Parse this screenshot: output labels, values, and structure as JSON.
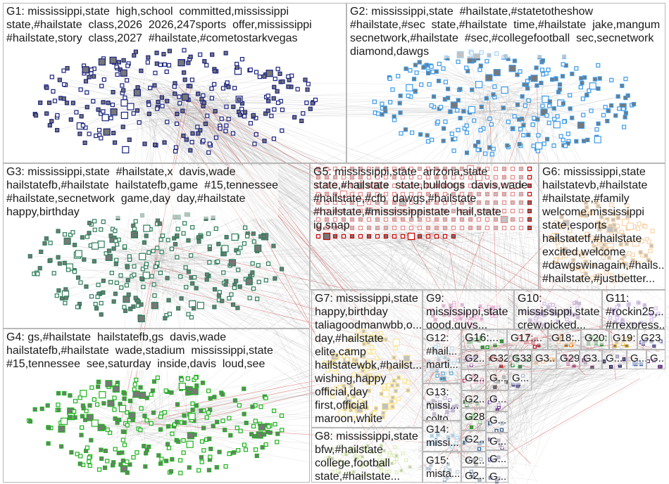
{
  "groups": [
    {
      "id": "G1",
      "label": "G1: mississippi,state  high,school  committed,mississippi\nstate,#hailstate  class,2026  2026,247sports  offer,mississippi\n#hailstate,story  class,2027  #hailstate,#cometostarkvegas",
      "color": "#1a237e"
    },
    {
      "id": "G2",
      "label": "G2: mississippi,state  #hailstate,#statetotheshow\n#hailstate,#sec  state,#hailstate  time,#hailstate  jake,mangum\nsecnetwork,#hailstate  #sec,#collegefootball  sec,secnetwork\ndiamond,dawgs",
      "color": "#3d9be9"
    },
    {
      "id": "G3",
      "label": "G3: mississippi,state  #hailstate,x  davis,wade\nhailstatefb,#hailstate  hailstatefb,game  #15,tennessee\n#hailstate,secnetwork  game,day  day,#hailstate\nhappy,birthday",
      "color": "#2e7d5b"
    },
    {
      "id": "G4",
      "label": "G4: gs,#hailstate  hailstatefb,gs  davis,wade\nhailstatefb,#hailstate  wade,stadium  mississippi,state\n#15,tennessee  see,saturday  inside,davis  loud,see",
      "color": "#1db31d"
    },
    {
      "id": "G5",
      "label": "G5: mississippi,state  arizona,state\nstate,#hailstate  state,bulldogs  davis,wade\n#hailstate,#cfb  dawgs,#hailstate\n#hailstate,#mississippistate  hail,state\nig,snap",
      "color": "#cc0000"
    },
    {
      "id": "G6",
      "label": "G6: mississippi,state\nhailstatevb,#hailstate\n#hailstate,#family\nwelcome,mississippi\nstate,esports\nhailstatetf,#hailstate\nexcited,welcome\n#dawgswinagain,#hails...\n#hailstate,#justbetter...",
      "color": "#f0a040"
    },
    {
      "id": "G7",
      "label": "G7: mississippi,state\nhappy,birthday\ntaliagoodmanwbb,o...\nday,#hailstate\nelite,camp\nhailstatewbk,#hailst...\nwishing,happy\nofficial,day\nfirst,official\nmaroon,white",
      "color": "#f5c518"
    },
    {
      "id": "G8",
      "label": "G8: mississippi,state\nbfw,#hailstate\ncollege,football\nstate,#hailstate...",
      "color": "#b5d96a"
    },
    {
      "id": "G9",
      "label": "G9:\nmississippi,state\ngood,guys...",
      "color": "#e060b0"
    },
    {
      "id": "G10",
      "label": "G10:\nmississippi,state\ncrew,picked...",
      "color": "#9a6ac0"
    },
    {
      "id": "G11",
      "label": "G11:\n#rockin25,...\n#rrexpress...",
      "color": "#a070e0"
    },
    {
      "id": "G12",
      "label": "G12:\n#hail...\nmarti...",
      "color": "#6aaad0"
    },
    {
      "id": "G13",
      "label": "G13:\nmissi...\ncolto...",
      "color": "#7a5aa0"
    },
    {
      "id": "G14",
      "label": "G14:\nmissi...",
      "color": "#4aaae0"
    },
    {
      "id": "G15",
      "label": "G15:\nmista...",
      "color": "#80a0c0"
    },
    {
      "id": "G16",
      "label": "G16:...",
      "color": "#109010"
    },
    {
      "id": "G17",
      "label": "G17:...",
      "color": "#c01020"
    },
    {
      "id": "G18",
      "label": "G18:...",
      "color": "#e07000"
    },
    {
      "id": "G20",
      "label": "G20:...",
      "color": "#30a030"
    },
    {
      "id": "G19",
      "label": "G19:...",
      "color": "#e0a000"
    },
    {
      "id": "G23",
      "label": "G23",
      "color": "#5050a0"
    },
    {
      "id": "G2a",
      "label": "G2...",
      "color": "#8a4a9a"
    },
    {
      "id": "G32",
      "label": "G32",
      "color": "#c01010"
    },
    {
      "id": "G33",
      "label": "G33",
      "color": "#109030"
    },
    {
      "id": "G3a",
      "label": "G3...",
      "color": "#e08020"
    },
    {
      "id": "G29",
      "label": "G29",
      "color": "#c04080"
    },
    {
      "id": "G3b",
      "label": "G3...",
      "color": "#703070"
    },
    {
      "id": "Ga",
      "label": "G...",
      "color": "#202070"
    },
    {
      "id": "Gb",
      "label": "G...",
      "color": "#3060c0"
    },
    {
      "id": "Gc",
      "label": "G...",
      "color": "#6a2a8a"
    },
    {
      "id": "G2b",
      "label": "G2...",
      "color": "#d02060"
    },
    {
      "id": "G2c",
      "label": "G2...",
      "color": "#3a7a3a"
    },
    {
      "id": "G28",
      "label": "G28",
      "color": "#20a020"
    },
    {
      "id": "G2d",
      "label": "G2...",
      "color": "#2a6aa0"
    },
    {
      "id": "G2e",
      "label": "G2...",
      "color": "#506070"
    },
    {
      "id": "G2f",
      "label": "G2...",
      "color": "#0a3a6a"
    },
    {
      "id": "Gd",
      "label": "G...",
      "color": "#505050"
    },
    {
      "id": "Ge",
      "label": "G...",
      "color": "#7a3aa0"
    },
    {
      "id": "Gf",
      "label": "G...",
      "color": "#305080"
    },
    {
      "id": "Gg",
      "label": "G...",
      "color": "#6a4a8a"
    },
    {
      "id": "Gh",
      "label": "G...",
      "color": "#4a4aa0"
    },
    {
      "id": "Gi",
      "label": "G...",
      "color": "#2a2a6a"
    },
    {
      "id": "Gj",
      "label": "G...",
      "color": "#5a5a9a"
    }
  ],
  "edge_color": "#9a9a9a",
  "highlight_edge_color": "#d04040"
}
